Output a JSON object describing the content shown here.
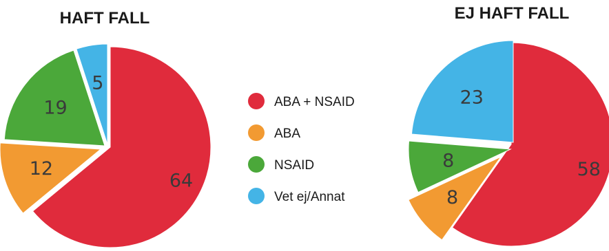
{
  "legend": {
    "placement": "center",
    "items": [
      {
        "label": "ABA + NSAID",
        "color": "#e02b3c"
      },
      {
        "label": "ABA",
        "color": "#f29a32"
      },
      {
        "label": "NSAID",
        "color": "#4ba83a"
      },
      {
        "label": "Vet ej/Annat",
        "color": "#44b4e6"
      }
    ]
  },
  "chart_data": [
    {
      "type": "pie",
      "title": "HAFT FALL",
      "categories": [
        "ABA + NSAID",
        "ABA",
        "NSAID",
        "Vet ej/Annat"
      ],
      "values": [
        64,
        12,
        19,
        5
      ],
      "labels": [
        "64",
        "12",
        "19",
        "5"
      ],
      "colors": [
        "#e02b3c",
        "#f29a32",
        "#4ba83a",
        "#44b4e6"
      ]
    },
    {
      "type": "pie",
      "title": "EJ HAFT FALL",
      "categories": [
        "ABA + NSAID",
        "ABA",
        "NSAID",
        "Vet ej/Annat"
      ],
      "values": [
        58,
        8,
        8,
        23
      ],
      "labels": [
        "58",
        "8",
        "8",
        "23"
      ],
      "colors": [
        "#e02b3c",
        "#f29a32",
        "#4ba83a",
        "#44b4e6"
      ]
    }
  ]
}
